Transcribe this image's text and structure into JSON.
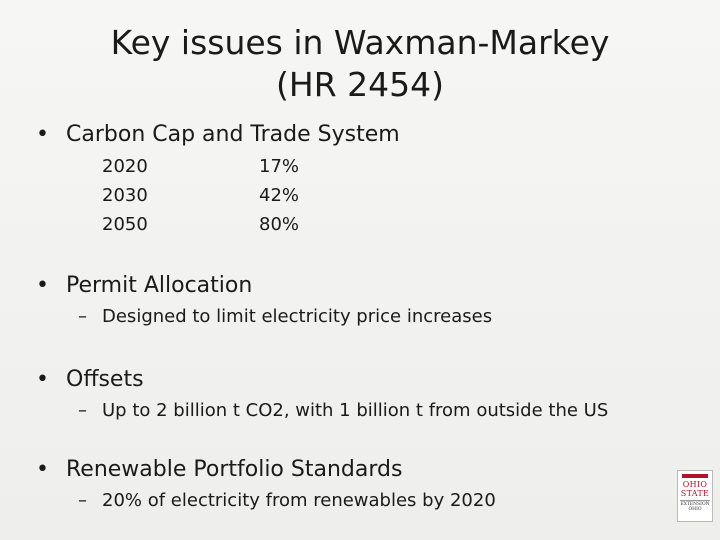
{
  "slide": {
    "title_line1": "Key issues in Waxman-Markey",
    "title_line2": "(HR 2454)"
  },
  "bullets": [
    {
      "symbol": "•",
      "label": "Carbon Cap and Trade System",
      "table": [
        {
          "year": "2020",
          "value": "17%"
        },
        {
          "year": "2030",
          "value": "42%"
        },
        {
          "year": "2050",
          "value": "80%"
        }
      ]
    },
    {
      "symbol": "•",
      "label": "Permit Allocation",
      "sub": "Designed to limit electricity price increases"
    },
    {
      "symbol": "•",
      "label": "Offsets",
      "sub": "Up to 2 billion t CO2, with 1 billion t from outside the US"
    },
    {
      "symbol": "•",
      "label": "Renewable Portfolio Standards",
      "sub": "20% of electricity from renewables by 2020"
    }
  ],
  "sub_symbol": "–",
  "logo": {
    "line1": "OHIO",
    "line2": "STATE",
    "line3": "EXTENSION",
    "line4": "OHIO",
    "accent_color": "#b4122a"
  }
}
